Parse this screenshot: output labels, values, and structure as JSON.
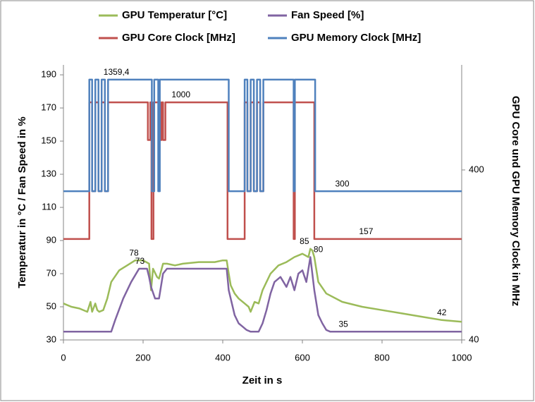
{
  "chart_data": {
    "type": "line",
    "xlabel": "Zeit in s",
    "ylabel": "Temperatur in °C / Fan Speed in %",
    "y2label": "GPU Core und GPU Memory Clock in MHz",
    "xlim": [
      0,
      1000
    ],
    "xticks": [
      0,
      200,
      400,
      600,
      800,
      1000
    ],
    "ylim": [
      30,
      196
    ],
    "yticks": [
      30,
      50,
      70,
      90,
      110,
      130,
      150,
      170,
      190
    ],
    "y2lim": [
      40,
      1660
    ],
    "y2ticks": [
      40,
      400
    ],
    "y2scale": "log",
    "grid": false,
    "legend": "top",
    "series": [
      {
        "name": "GPU Temperatur [°C]",
        "color": "#9bbb59",
        "x": [
          0,
          20,
          40,
          60,
          68,
          72,
          80,
          85,
          90,
          100,
          110,
          120,
          140,
          160,
          180,
          200,
          215,
          220,
          225,
          235,
          240,
          250,
          260,
          280,
          300,
          340,
          380,
          400,
          410,
          415,
          420,
          430,
          440,
          455,
          465,
          470,
          475,
          480,
          490,
          500,
          510,
          520,
          540,
          560,
          580,
          600,
          615,
          620,
          625,
          630,
          640,
          660,
          700,
          750,
          800,
          850,
          900,
          950,
          1000
        ],
        "values": [
          52,
          50,
          49,
          47,
          53,
          47,
          52,
          48,
          47,
          48,
          55,
          65,
          72,
          75,
          78,
          78,
          76,
          60,
          73,
          68,
          67,
          76,
          76,
          75,
          76,
          77,
          77,
          78,
          78,
          70,
          63,
          58,
          55,
          52,
          50,
          47,
          50,
          53,
          52,
          60,
          65,
          70,
          75,
          77,
          80,
          82,
          80,
          85,
          84,
          80,
          65,
          58,
          53,
          50,
          48,
          46,
          44,
          42,
          41
        ]
      },
      {
        "name": "Fan Speed [%]",
        "color": "#8064a2",
        "x": [
          0,
          120,
          130,
          150,
          170,
          190,
          210,
          215,
          220,
          230,
          240,
          250,
          260,
          300,
          410,
          415,
          420,
          430,
          440,
          450,
          460,
          470,
          490,
          500,
          510,
          520,
          530,
          545,
          560,
          570,
          580,
          590,
          600,
          610,
          620,
          630,
          640,
          650,
          660,
          670,
          1000
        ],
        "values": [
          35,
          35,
          42,
          55,
          65,
          73,
          73,
          68,
          62,
          55,
          55,
          70,
          73,
          73,
          73,
          60,
          55,
          45,
          40,
          38,
          36,
          35,
          35,
          40,
          48,
          58,
          65,
          68,
          62,
          68,
          60,
          70,
          72,
          65,
          80,
          60,
          45,
          40,
          36,
          35,
          35
        ]
      },
      {
        "name": "GPU Core Clock [MHz]",
        "color": "#c0504d",
        "axis": "y2",
        "x": [
          0,
          65,
          65,
          72,
          72,
          80,
          80,
          88,
          88,
          96,
          96,
          104,
          104,
          112,
          112,
          212,
          212,
          218,
          218,
          221,
          221,
          226,
          226,
          240,
          240,
          246,
          246,
          250,
          250,
          256,
          256,
          412,
          412,
          455,
          455,
          462,
          462,
          470,
          470,
          478,
          478,
          486,
          486,
          494,
          494,
          502,
          502,
          578,
          578,
          581,
          581,
          630,
          630,
          1000
        ],
        "values": [
          157,
          157,
          1000,
          1000,
          300,
          300,
          1000,
          1000,
          300,
          300,
          1000,
          1000,
          300,
          300,
          1000,
          1000,
          600,
          600,
          1000,
          1000,
          157,
          157,
          1000,
          1000,
          600,
          600,
          1000,
          1000,
          600,
          600,
          1000,
          1000,
          157,
          157,
          1000,
          1000,
          300,
          300,
          1000,
          1000,
          300,
          300,
          1000,
          1000,
          300,
          300,
          1000,
          1000,
          157,
          157,
          1000,
          1000,
          157,
          157
        ]
      },
      {
        "name": "GPU Memory Clock [MHz]",
        "color": "#4f81bd",
        "axis": "y2",
        "x": [
          0,
          65,
          65,
          72,
          72,
          80,
          80,
          88,
          88,
          96,
          96,
          104,
          104,
          112,
          112,
          222,
          222,
          228,
          228,
          238,
          238,
          242,
          242,
          415,
          415,
          455,
          455,
          462,
          462,
          470,
          470,
          478,
          478,
          486,
          486,
          494,
          494,
          502,
          502,
          578,
          578,
          581,
          581,
          632,
          632,
          1000
        ],
        "values": [
          300,
          300,
          1359.4,
          1359.4,
          300,
          300,
          1359.4,
          1359.4,
          300,
          300,
          1359.4,
          1359.4,
          300,
          300,
          1359.4,
          1359.4,
          300,
          300,
          1359.4,
          1359.4,
          300,
          300,
          1359.4,
          1359.4,
          300,
          300,
          1359.4,
          1359.4,
          300,
          300,
          1359.4,
          1359.4,
          300,
          300,
          1359.4,
          1359.4,
          300,
          300,
          1359.4,
          1359.4,
          300,
          300,
          1359.4,
          1359.4,
          300,
          300
        ]
      }
    ],
    "annotations": [
      {
        "text": "1359,4",
        "x": 133,
        "y": 1359.4,
        "axis": "y2"
      },
      {
        "text": "1000",
        "x": 295,
        "y": 1000,
        "axis": "y2"
      },
      {
        "text": "300",
        "x": 700,
        "y": 300,
        "axis": "y2"
      },
      {
        "text": "157",
        "x": 760,
        "y": 157,
        "axis": "y2"
      },
      {
        "text": "78",
        "x": 177,
        "y": 78,
        "axis": "y"
      },
      {
        "text": "73",
        "x": 192,
        "y": 73,
        "axis": "y"
      },
      {
        "text": "85",
        "x": 605,
        "y": 85,
        "axis": "y"
      },
      {
        "text": "80",
        "x": 640,
        "y": 80,
        "axis": "y"
      },
      {
        "text": "42",
        "x": 950,
        "y": 42,
        "axis": "y"
      },
      {
        "text": "35",
        "x": 703,
        "y": 35,
        "axis": "y"
      }
    ]
  }
}
